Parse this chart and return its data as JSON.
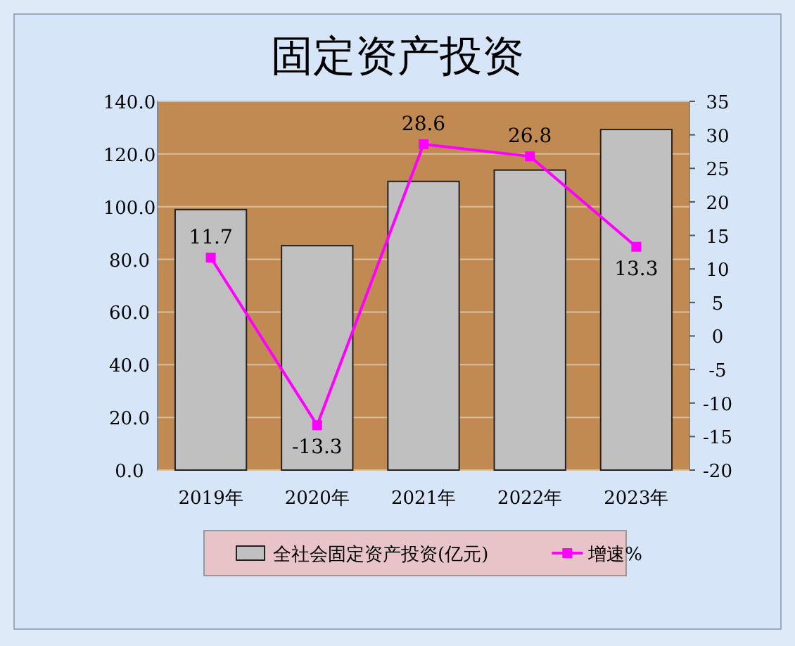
{
  "chart_data": {
    "type": "bar",
    "title": "固定资产投资",
    "categories": [
      "2019年",
      "2020年",
      "2021年",
      "2022年",
      "2023年"
    ],
    "series": [
      {
        "name": "全社会固定资产投资(亿元)",
        "type": "bar",
        "color": "#c0c0c0",
        "values": [
          98.9,
          85.2,
          109.6,
          113.9,
          129.3
        ]
      },
      {
        "name": "增速%",
        "type": "line",
        "axis": "y2",
        "color": "#ff00ff",
        "marker": "square",
        "values": [
          11.7,
          -13.3,
          28.6,
          26.8,
          13.3
        ],
        "value_labels": [
          "11.7",
          "-13.3",
          "28.6",
          "26.8",
          "13.3"
        ]
      }
    ],
    "ylim": [
      0,
      140
    ],
    "yticks": [
      {
        "value": 0,
        "label": "0.0"
      },
      {
        "value": 20,
        "label": "20.0"
      },
      {
        "value": 40,
        "label": "40.0"
      },
      {
        "value": 60,
        "label": "60.0"
      },
      {
        "value": 80,
        "label": "80.0"
      },
      {
        "value": 100,
        "label": "100.0"
      },
      {
        "value": 120,
        "label": "120.0"
      },
      {
        "value": 140,
        "label": "140.0"
      }
    ],
    "y2lim": [
      -20,
      35
    ],
    "y2ticks": [
      -20,
      -15,
      -10,
      -5,
      0,
      5,
      10,
      15,
      20,
      25,
      30,
      35
    ],
    "grid": "y",
    "legend": "bottom"
  }
}
